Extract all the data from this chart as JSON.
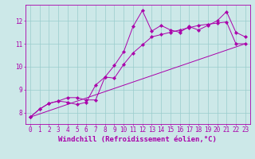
{
  "xlabel": "Windchill (Refroidissement éolien,°C)",
  "xlim": [
    -0.5,
    23.5
  ],
  "ylim": [
    7.5,
    12.7
  ],
  "yticks": [
    8,
    9,
    10,
    11,
    12
  ],
  "xticks": [
    0,
    1,
    2,
    3,
    4,
    5,
    6,
    7,
    8,
    9,
    10,
    11,
    12,
    13,
    14,
    15,
    16,
    17,
    18,
    19,
    20,
    21,
    22,
    23
  ],
  "bg_color": "#cce8e8",
  "line_color": "#aa00aa",
  "grid_color": "#99cccc",
  "line1_y": [
    7.8,
    8.15,
    8.4,
    8.5,
    8.65,
    8.65,
    8.55,
    8.55,
    9.55,
    10.05,
    10.65,
    11.75,
    12.45,
    11.55,
    11.8,
    11.6,
    11.5,
    11.75,
    11.6,
    11.8,
    12.0,
    12.4,
    11.5,
    11.3
  ],
  "line2_y": [
    7.8,
    8.15,
    8.4,
    8.5,
    8.45,
    8.35,
    8.45,
    9.2,
    9.55,
    9.5,
    10.1,
    10.6,
    10.95,
    11.3,
    11.4,
    11.5,
    11.6,
    11.7,
    11.8,
    11.85,
    11.9,
    11.95,
    11.0,
    11.0
  ],
  "line3_x": [
    0,
    23
  ],
  "line3_y": [
    7.8,
    11.0
  ],
  "font_size": 6.5,
  "tick_font_size": 5.5
}
